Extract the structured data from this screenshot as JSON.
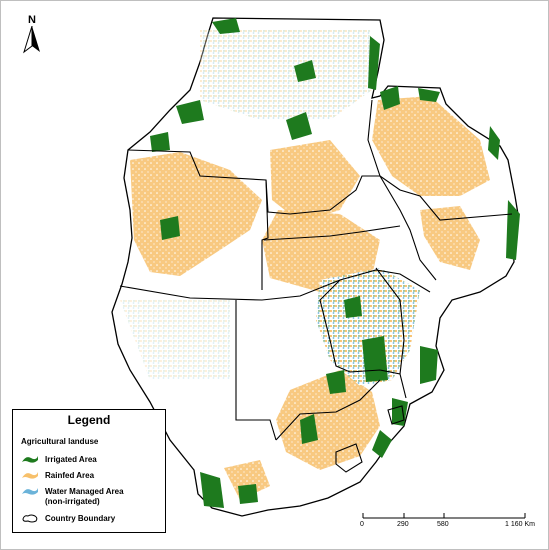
{
  "north_arrow": {
    "letter": "N",
    "icon": "north-arrow-icon"
  },
  "legend": {
    "title": "Legend",
    "subtitle": "Agricultural landuse",
    "items": [
      {
        "label": "Irrigated Area",
        "color": "#1e7a1e"
      },
      {
        "label": "Rainfed Area",
        "color": "#f7c06b"
      },
      {
        "label": "Water Managed Area",
        "label2": "(non-irrigated)",
        "color": "#6bb3d9"
      },
      {
        "label": "Country Boundary",
        "color": "#000000"
      }
    ]
  },
  "scale_bar": {
    "ticks": [
      "0",
      "290",
      "580",
      "1 160 Km"
    ],
    "unit": "Km"
  },
  "colors": {
    "irrigated": "#1e7a1e",
    "rainfed": "#f7c06b",
    "water_managed": "#6bb3d9",
    "boundary": "#000000",
    "background": "#ffffff"
  }
}
